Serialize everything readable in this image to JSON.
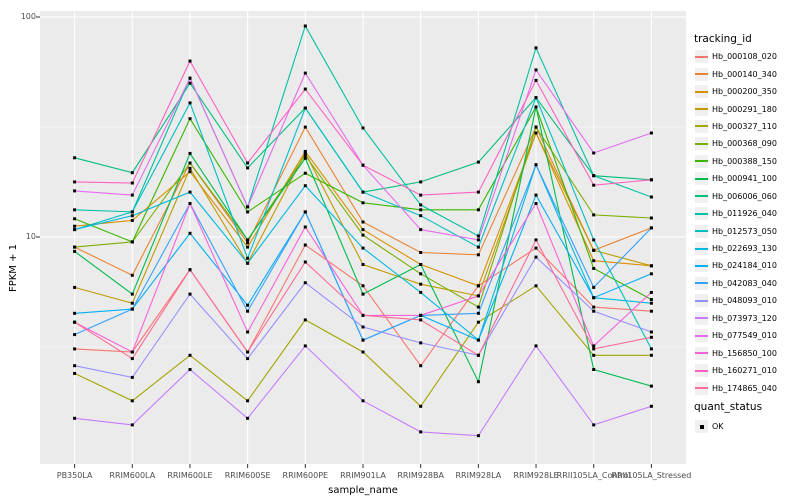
{
  "figure": {
    "background": "#FFFFFF",
    "panel_background": "#EBEBEB",
    "grid_color": "#FFFFFF",
    "axis_text_color": "#4D4D4D",
    "tick_mark_color": "#333333",
    "point_color": "#000000",
    "legend_key_background": "#F0F0F0"
  },
  "axes": {
    "x_title": "sample_name",
    "y_title": "FPKM + 1",
    "y_tick_labels": [
      "100",
      "10"
    ],
    "y_tick_values": [
      100,
      10
    ]
  },
  "legend": {
    "tracking_title": "tracking_id",
    "quant_title": "quant_status",
    "quant_items": [
      {
        "label": "OK",
        "marker": "black-square"
      }
    ]
  },
  "chart_data": {
    "type": "line",
    "title": "",
    "xlabel": "sample_name",
    "ylabel": "FPKM + 1",
    "y_scale": "log10",
    "ylim": [
      1,
      110
    ],
    "y_major_gridlines": [
      10,
      100
    ],
    "y_minor_gridlines": [
      3.162,
      31.62
    ],
    "grid": true,
    "legend_position": "right",
    "point_marker": "small-black-square",
    "categories": [
      "PB350LA",
      "RRIM600LA",
      "RRIM600LE",
      "RRIM600SE",
      "RRIM600PE",
      "RRIM901LA",
      "RRIM928BA",
      "RRIM928LA",
      "RRIM928LE",
      "RRII105LA_Control",
      "RRII105LA_Stressed"
    ],
    "series": [
      {
        "name": "Hb_000108_020",
        "color": "#F8766D",
        "values": [
          3.1,
          3.0,
          7.1,
          3.0,
          9.2,
          6.0,
          2.6,
          6.0,
          8.9,
          4.8,
          4.6
        ]
      },
      {
        "name": "Hb_000140_340",
        "color": "#EA8331",
        "values": [
          9.0,
          6.7,
          21.7,
          9.4,
          31.6,
          11.7,
          8.5,
          8.3,
          31.6,
          8.7,
          11.0
        ]
      },
      {
        "name": "Hb_000200_350",
        "color": "#D89000",
        "values": [
          11.2,
          11.9,
          19.8,
          9.0,
          24.5,
          10.8,
          7.5,
          6.0,
          29.7,
          7.8,
          7.4
        ]
      },
      {
        "name": "Hb_000291_180",
        "color": "#C09B00",
        "values": [
          5.9,
          5.0,
          20.5,
          7.6,
          24.1,
          7.5,
          6.1,
          5.4,
          29.7,
          8.7,
          7.4
        ]
      },
      {
        "name": "Hb_000327_110",
        "color": "#A3A500",
        "values": [
          2.4,
          1.8,
          2.9,
          1.8,
          4.2,
          3.0,
          1.7,
          4.1,
          6.0,
          2.9,
          2.9
        ]
      },
      {
        "name": "Hb_000368_090",
        "color": "#7CAE00",
        "values": [
          9.0,
          9.5,
          21.7,
          9.7,
          23.5,
          10.2,
          6.8,
          4.8,
          31.6,
          12.6,
          12.2
        ]
      },
      {
        "name": "Hb_000388_150",
        "color": "#39B600",
        "values": [
          12.1,
          9.5,
          34.5,
          13.0,
          19.5,
          14.3,
          13.3,
          13.3,
          39.0,
          7.2,
          5.2
        ]
      },
      {
        "name": "Hb_000941_100",
        "color": "#00BB4E",
        "values": [
          8.6,
          5.5,
          24.0,
          9.7,
          22.8,
          5.5,
          7.5,
          2.2,
          39.0,
          2.5,
          2.1
        ]
      },
      {
        "name": "Hb_006006_060",
        "color": "#00BF7D",
        "values": [
          22.9,
          19.6,
          50.0,
          20.6,
          38.6,
          16.0,
          17.8,
          21.9,
          43.0,
          19.0,
          18.2
        ]
      },
      {
        "name": "Hb_011926_040",
        "color": "#00C1A3",
        "values": [
          13.3,
          13.0,
          52.7,
          13.7,
          91.0,
          31.3,
          14.0,
          10.1,
          72.4,
          19.0,
          15.2
        ]
      },
      {
        "name": "Hb_012573_050",
        "color": "#00BFC4",
        "values": [
          10.8,
          13.0,
          40.7,
          8.0,
          38.6,
          16.0,
          12.5,
          9.0,
          43.0,
          9.7,
          3.1
        ]
      },
      {
        "name": "Hb_022693_130",
        "color": "#00BAE0",
        "values": [
          10.8,
          12.5,
          16.0,
          7.6,
          17.1,
          8.9,
          5.6,
          3.4,
          21.3,
          5.3,
          5.0
        ]
      },
      {
        "name": "Hb_024184_010",
        "color": "#00B0F6",
        "values": [
          4.5,
          4.7,
          10.4,
          4.9,
          13.0,
          3.4,
          4.4,
          3.4,
          15.5,
          5.3,
          6.8
        ]
      },
      {
        "name": "Hb_042083_040",
        "color": "#35A2FF",
        "values": [
          3.6,
          4.7,
          14.2,
          4.6,
          13.0,
          3.4,
          4.4,
          4.5,
          21.3,
          5.9,
          11.0
        ]
      },
      {
        "name": "Hb_048093_010",
        "color": "#9590FF",
        "values": [
          2.6,
          2.3,
          5.5,
          2.8,
          6.2,
          3.9,
          3.3,
          2.9,
          8.1,
          4.6,
          3.7
        ]
      },
      {
        "name": "Hb_073973_120",
        "color": "#C77CFF",
        "values": [
          1.5,
          1.4,
          2.5,
          1.5,
          3.2,
          1.8,
          1.3,
          1.25,
          3.2,
          1.4,
          1.7
        ]
      },
      {
        "name": "Hb_077549_010",
        "color": "#E76BF3",
        "values": [
          16.2,
          15.5,
          52.7,
          13.7,
          55.6,
          21.2,
          10.8,
          9.7,
          57.5,
          24.1,
          29.7
        ]
      },
      {
        "name": "Hb_156850_100",
        "color": "#FA62DB",
        "values": [
          4.1,
          3.0,
          14.2,
          3.7,
          11.1,
          4.4,
          4.4,
          5.4,
          14.2,
          3.2,
          5.6
        ]
      },
      {
        "name": "Hb_160271_010",
        "color": "#FF61C3",
        "values": [
          17.8,
          17.6,
          63.0,
          21.7,
          47.0,
          21.2,
          15.5,
          16.0,
          51.5,
          17.2,
          18.2
        ]
      },
      {
        "name": "Hb_174865_040",
        "color": "#FF6A98",
        "values": [
          4.1,
          2.8,
          7.1,
          3.0,
          7.7,
          4.4,
          4.2,
          2.9,
          9.7,
          3.1,
          3.5
        ]
      }
    ]
  }
}
